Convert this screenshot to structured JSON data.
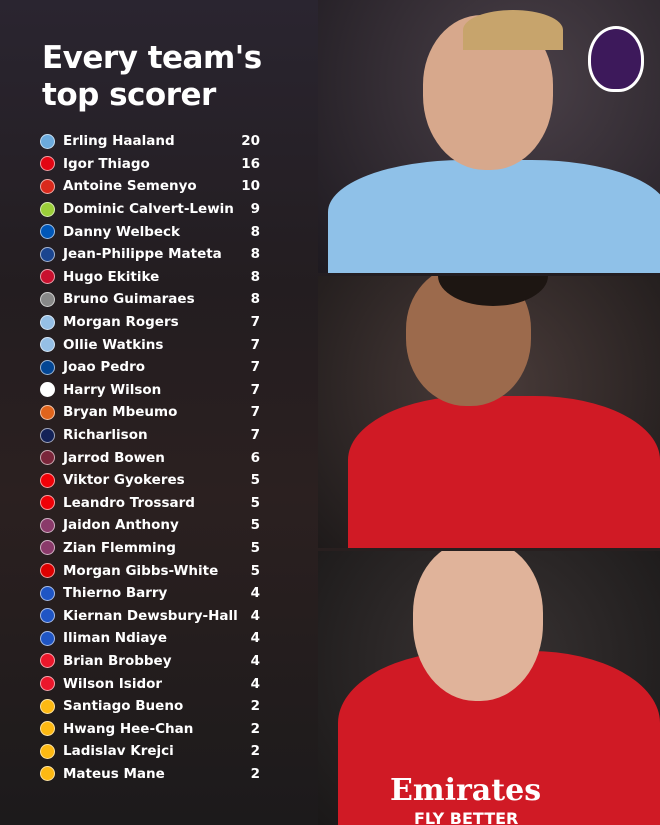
{
  "title": [
    "Every team's",
    "top scorer"
  ],
  "logo": "premier-league-lion-logo",
  "photos": [
    {
      "name": "player-photo-city",
      "shirt": "#8fc1e8"
    },
    {
      "name": "player-photo-liverpool",
      "shirt": "#d01a25"
    },
    {
      "name": "player-photo-arsenal",
      "shirt": "#d01a25",
      "sponsor": "Emirates",
      "sponsor2": "FLY BETTER"
    }
  ],
  "players": [
    {
      "name": "Erling Haaland",
      "goals": "20",
      "crest": "#6cabdd"
    },
    {
      "name": "Igor Thiago",
      "goals": "16",
      "crest": "#e30613"
    },
    {
      "name": "Antoine Semenyo",
      "goals": "10",
      "crest": "#da291c"
    },
    {
      "name": "Dominic Calvert-Lewin",
      "goals": "9",
      "crest": "#9ccf3a"
    },
    {
      "name": "Danny Welbeck",
      "goals": "8",
      "crest": "#0057b8"
    },
    {
      "name": "Jean-Philippe Mateta",
      "goals": "8",
      "crest": "#1b458f"
    },
    {
      "name": "Hugo Ekitike",
      "goals": "8",
      "crest": "#c8102e"
    },
    {
      "name": "Bruno Guimaraes",
      "goals": "8",
      "crest": "#888888"
    },
    {
      "name": "Morgan Rogers",
      "goals": "7",
      "crest": "#95bfe5"
    },
    {
      "name": "Ollie Watkins",
      "goals": "7",
      "crest": "#95bfe5"
    },
    {
      "name": "Joao Pedro",
      "goals": "7",
      "crest": "#034694"
    },
    {
      "name": "Harry Wilson",
      "goals": "7",
      "crest": "#ffffff"
    },
    {
      "name": "Bryan Mbeumo",
      "goals": "7",
      "crest": "#e0641c"
    },
    {
      "name": "Richarlison",
      "goals": "7",
      "crest": "#132257"
    },
    {
      "name": "Jarrod Bowen",
      "goals": "6",
      "crest": "#7a263a"
    },
    {
      "name": "Viktor Gyokeres",
      "goals": "5",
      "crest": "#ef0107"
    },
    {
      "name": "Leandro Trossard",
      "goals": "5",
      "crest": "#ef0107"
    },
    {
      "name": "Jaidon Anthony",
      "goals": "5",
      "crest": "#8a3a6a"
    },
    {
      "name": "Zian Flemming",
      "goals": "5",
      "crest": "#8a3a6a"
    },
    {
      "name": "Morgan Gibbs-White",
      "goals": "5",
      "crest": "#dd0000"
    },
    {
      "name": "Thierno Barry",
      "goals": "4",
      "crest": "#1f55c4"
    },
    {
      "name": "Kiernan Dewsbury-Hall",
      "goals": "4",
      "crest": "#1f55c4"
    },
    {
      "name": "Iliman Ndiaye",
      "goals": "4",
      "crest": "#1f55c4"
    },
    {
      "name": "Brian Brobbey",
      "goals": "4",
      "crest": "#eb172b"
    },
    {
      "name": "Wilson Isidor",
      "goals": "4",
      "crest": "#eb172b"
    },
    {
      "name": "Santiago Bueno",
      "goals": "2",
      "crest": "#fdb913"
    },
    {
      "name": "Hwang Hee-Chan",
      "goals": "2",
      "crest": "#fdb913"
    },
    {
      "name": "Ladislav Krejci",
      "goals": "2",
      "crest": "#fdb913"
    },
    {
      "name": "Mateus Mane",
      "goals": "2",
      "crest": "#fdb913"
    }
  ]
}
